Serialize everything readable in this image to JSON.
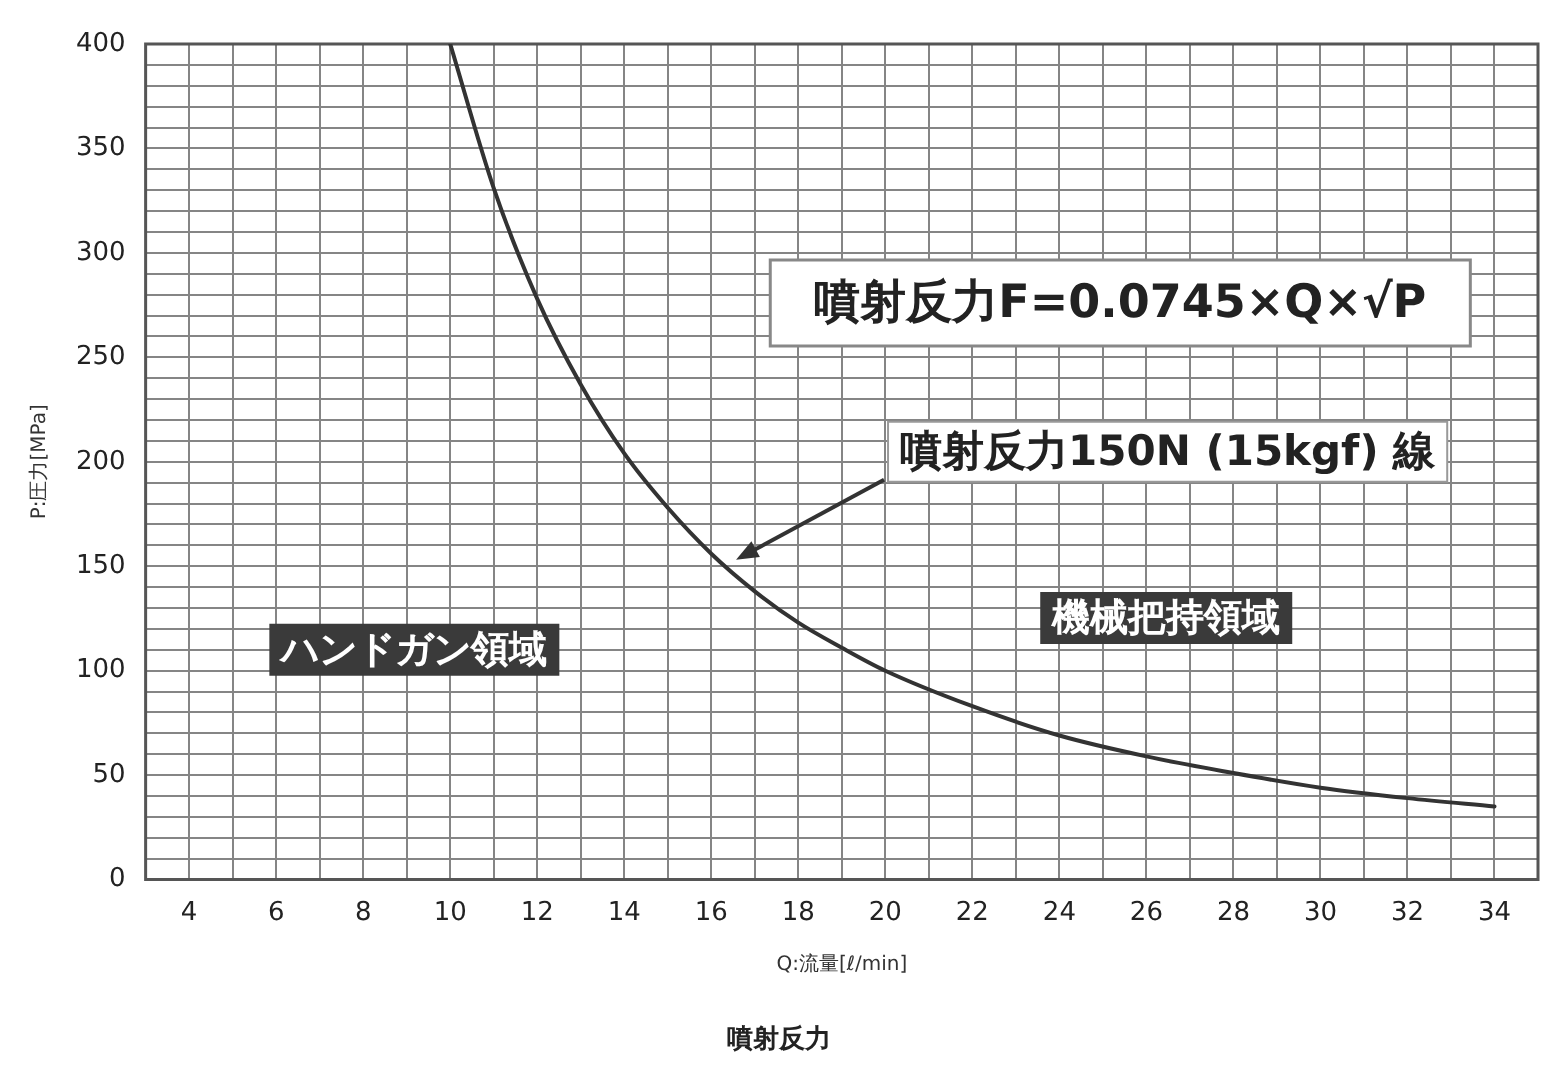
{
  "chart_data": {
    "type": "line",
    "title": "噴射反力",
    "xlabel": "Q:流量[ℓ/min]",
    "ylabel": "P:圧力[MPa]",
    "x": [
      10,
      11,
      12,
      13,
      14,
      15,
      16,
      17,
      18,
      19,
      20,
      22,
      24,
      26,
      28,
      30,
      32,
      34
    ],
    "series": [
      {
        "color": "#333333",
        "values": [
          400,
          331,
          278,
          237,
          204,
          178,
          156,
          138,
          123,
          111,
          100,
          83,
          69,
          59,
          51,
          44,
          39,
          35
        ]
      }
    ],
    "xlim": [
      3,
      35
    ],
    "xticks": [
      4,
      {
        "value": 5,
        "label": null
      },
      6,
      {
        "value": 7,
        "label": null
      },
      8,
      {
        "value": 9,
        "label": null
      },
      10,
      {
        "value": 11,
        "label": null
      },
      12,
      {
        "value": 13,
        "label": null
      },
      14,
      {
        "value": 15,
        "label": null
      },
      16,
      {
        "value": 17,
        "label": null
      },
      18,
      {
        "value": 19,
        "label": null
      },
      20,
      {
        "value": 21,
        "label": null
      },
      22,
      {
        "value": 23,
        "label": null
      },
      24,
      {
        "value": 25,
        "label": null
      },
      26,
      {
        "value": 27,
        "label": null
      },
      28,
      {
        "value": 29,
        "label": null
      },
      30,
      {
        "value": 31,
        "label": null
      },
      32,
      {
        "value": 33,
        "label": null
      },
      34
    ],
    "ylim": [
      0,
      400
    ],
    "yticks": [
      0,
      {
        "value": 10,
        "label": null
      },
      {
        "value": 20,
        "label": null
      },
      {
        "value": 30,
        "label": null
      },
      {
        "value": 40,
        "label": null
      },
      50,
      {
        "value": 60,
        "label": null
      },
      {
        "value": 70,
        "label": null
      },
      {
        "value": 80,
        "label": null
      },
      {
        "value": 90,
        "label": null
      },
      100,
      {
        "value": 110,
        "label": null
      },
      {
        "value": 120,
        "label": null
      },
      {
        "value": 130,
        "label": null
      },
      {
        "value": 140,
        "label": null
      },
      150,
      {
        "value": 160,
        "label": null
      },
      {
        "value": 170,
        "label": null
      },
      {
        "value": 180,
        "label": null
      },
      {
        "value": 190,
        "label": null
      },
      200,
      {
        "value": 210,
        "label": null
      },
      {
        "value": 220,
        "label": null
      },
      {
        "value": 230,
        "label": null
      },
      {
        "value": 240,
        "label": null
      },
      250,
      {
        "value": 260,
        "label": null
      },
      {
        "value": 270,
        "label": null
      },
      {
        "value": 280,
        "label": null
      },
      {
        "value": 290,
        "label": null
      },
      300,
      {
        "value": 310,
        "label": null
      },
      {
        "value": 320,
        "label": null
      },
      {
        "value": 330,
        "label": null
      },
      {
        "value": 340,
        "label": null
      },
      350,
      {
        "value": 360,
        "label": null
      },
      {
        "value": 370,
        "label": null
      },
      {
        "value": 380,
        "label": null
      },
      {
        "value": 390,
        "label": null
      },
      400
    ],
    "annotations": [
      "噴射反力F=0.0745×Q×√P",
      "噴射反力150N (15kgf) 線",
      "ハンドガン領域",
      "機械把持領域"
    ],
    "grid": true,
    "legend": false,
    "marker": "none",
    "line_style": "solid"
  }
}
